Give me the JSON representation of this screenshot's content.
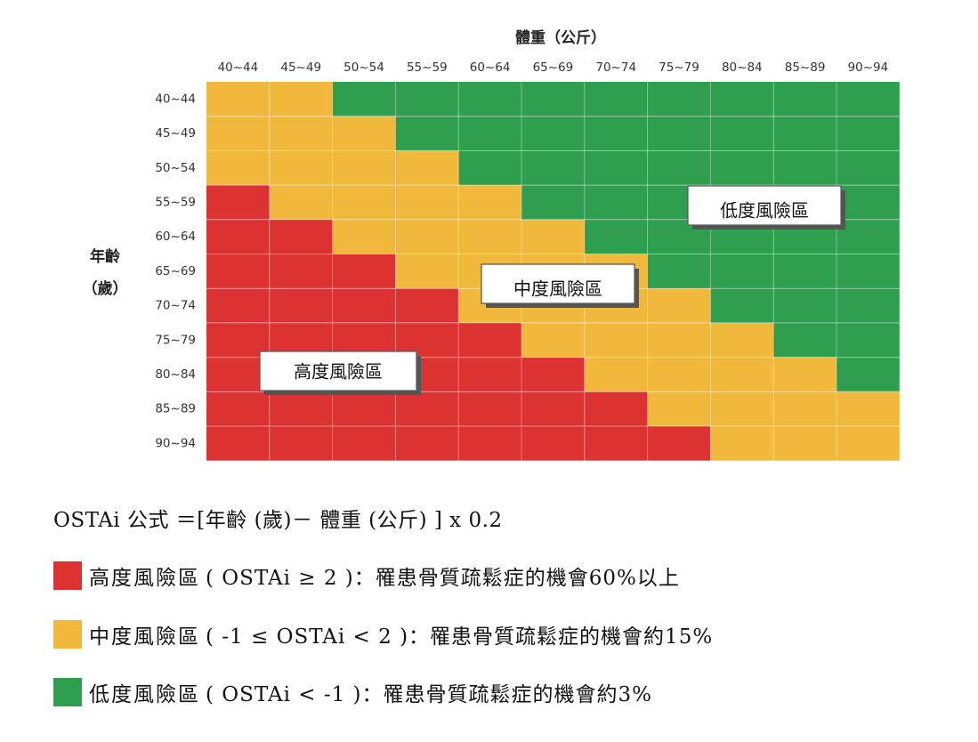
{
  "chart_data": {
    "type": "heatmap",
    "xlabel": "體重（公斤）",
    "ylabel_line1": "年齡",
    "ylabel_line2": "（歲）",
    "x_categories": [
      "40~44",
      "45~49",
      "50~54",
      "55~59",
      "60~64",
      "65~69",
      "70~74",
      "75~79",
      "80~84",
      "85~89",
      "90~94"
    ],
    "y_categories": [
      "40~44",
      "45~49",
      "50~54",
      "55~59",
      "60~64",
      "65~69",
      "70~74",
      "75~79",
      "80~84",
      "85~89",
      "90~94"
    ],
    "cells": [
      [
        "medium",
        "medium",
        "low",
        "low",
        "low",
        "low",
        "low",
        "low",
        "low",
        "low",
        "low"
      ],
      [
        "medium",
        "medium",
        "medium",
        "low",
        "low",
        "low",
        "low",
        "low",
        "low",
        "low",
        "low"
      ],
      [
        "medium",
        "medium",
        "medium",
        "medium",
        "low",
        "low",
        "low",
        "low",
        "low",
        "low",
        "low"
      ],
      [
        "high",
        "medium",
        "medium",
        "medium",
        "medium",
        "low",
        "low",
        "low",
        "low",
        "low",
        "low"
      ],
      [
        "high",
        "high",
        "medium",
        "medium",
        "medium",
        "medium",
        "low",
        "low",
        "low",
        "low",
        "low"
      ],
      [
        "high",
        "high",
        "high",
        "medium",
        "medium",
        "medium",
        "medium",
        "low",
        "low",
        "low",
        "low"
      ],
      [
        "high",
        "high",
        "high",
        "high",
        "medium",
        "medium",
        "medium",
        "medium",
        "low",
        "low",
        "low"
      ],
      [
        "high",
        "high",
        "high",
        "high",
        "high",
        "medium",
        "medium",
        "medium",
        "medium",
        "low",
        "low"
      ],
      [
        "high",
        "high",
        "high",
        "high",
        "high",
        "high",
        "medium",
        "medium",
        "medium",
        "medium",
        "low"
      ],
      [
        "high",
        "high",
        "high",
        "high",
        "high",
        "high",
        "high",
        "medium",
        "medium",
        "medium",
        "medium"
      ],
      [
        "high",
        "high",
        "high",
        "high",
        "high",
        "high",
        "high",
        "high",
        "medium",
        "medium",
        "medium"
      ]
    ],
    "zone_labels": {
      "high": "高度風險區",
      "medium": "中度風險區",
      "low": "低度風險區"
    },
    "colors": {
      "high": "#dc3232",
      "medium": "#f0b93c",
      "low": "#2e9e4f"
    },
    "grid": true
  },
  "formula": "OSTAi  公式  ＝[年齡 (歲)－ 體重 (公斤) ] x 0.2",
  "legend": [
    {
      "key": "high",
      "label": "高度風險區",
      "desc": "( OSTAi ≥ 2 )：罹患骨質疏鬆症的機會60%以上"
    },
    {
      "key": "medium",
      "label": "中度風險區",
      "desc": "( -1 ≤ OSTAi < 2 )：罹患骨質疏鬆症的機會約15%"
    },
    {
      "key": "low",
      "label": "低度風險區",
      "desc": "( OSTAi < -1 )：罹患骨質疏鬆症的機會約3%"
    }
  ]
}
